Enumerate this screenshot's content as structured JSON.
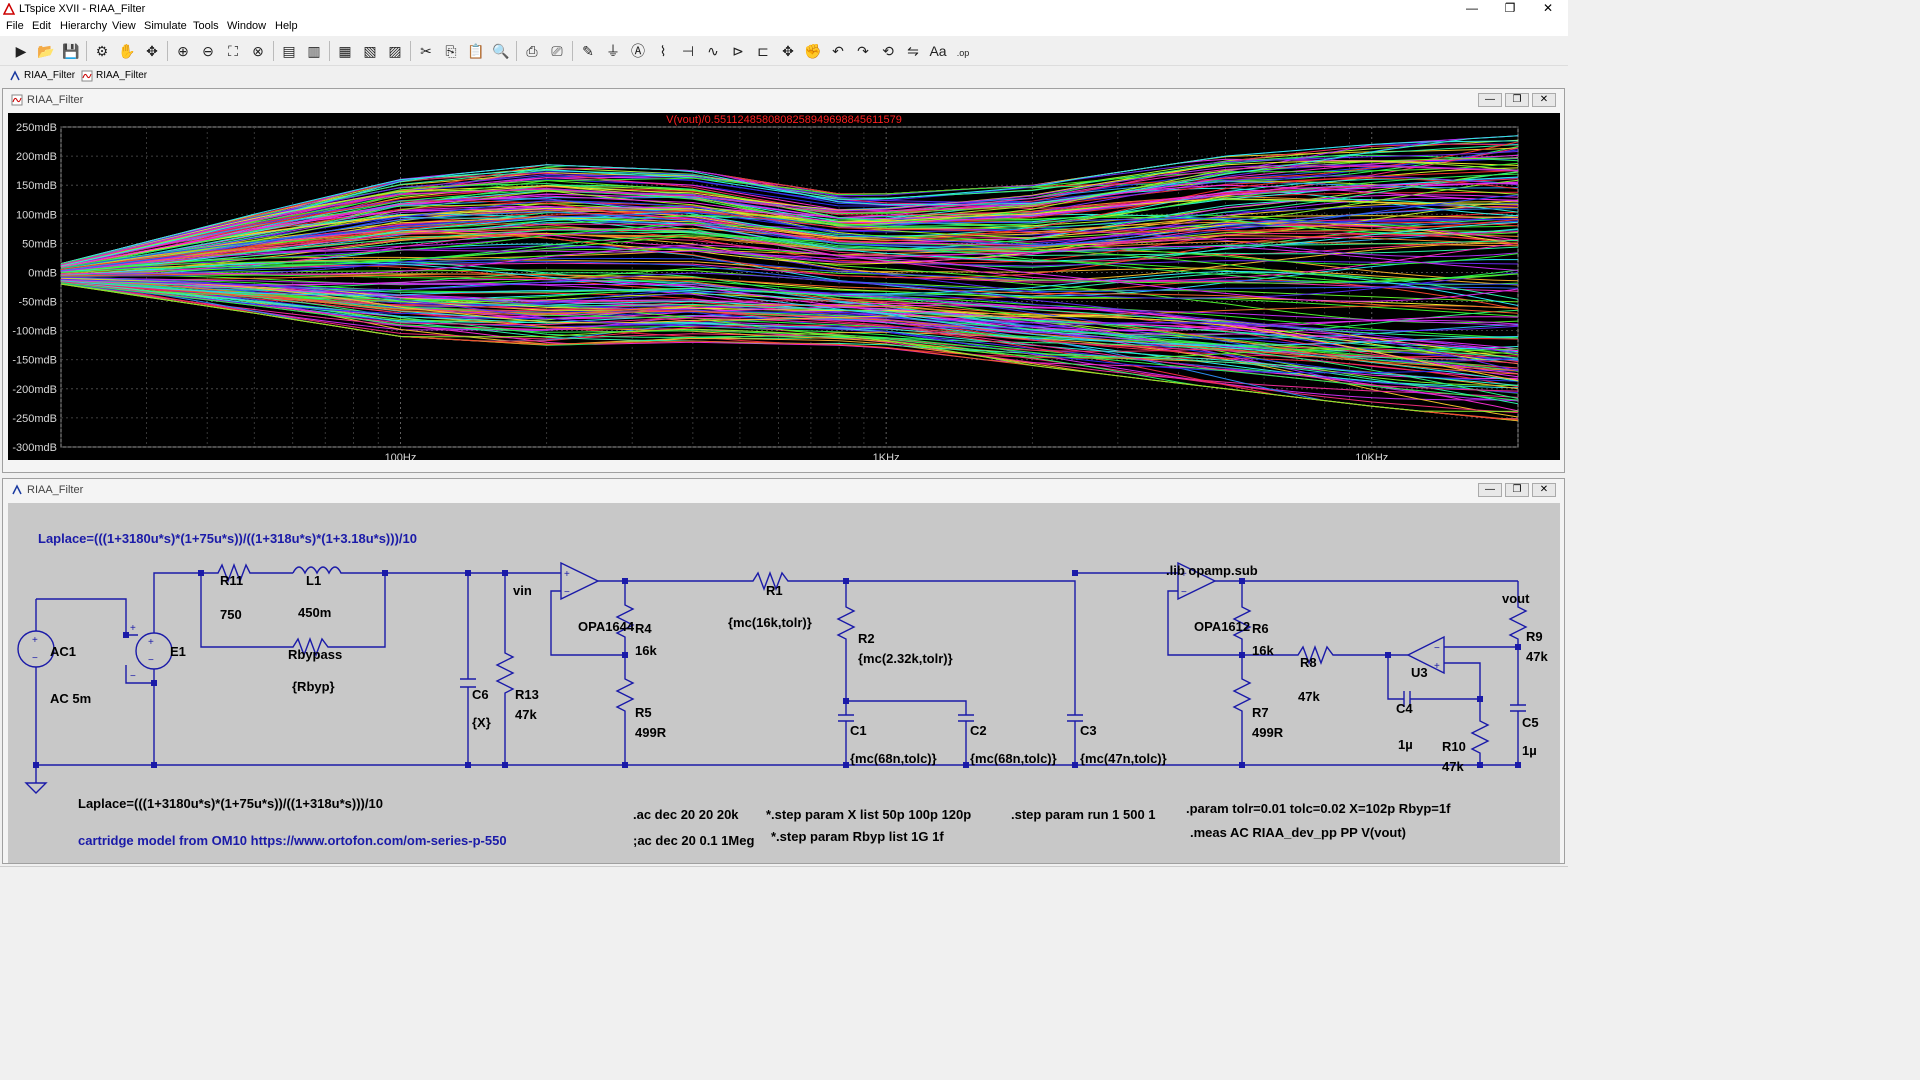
{
  "window": {
    "title": "LTspice XVII - RIAA_Filter",
    "minimize": "—",
    "maximize": "❐",
    "close": "✕"
  },
  "menu": [
    "File",
    "Edit",
    "Hierarchy",
    "View",
    "Simulate",
    "Tools",
    "Window",
    "Help"
  ],
  "toolbar_icons": [
    "run-icon",
    "open-icon",
    "save-icon",
    "control-panel-icon",
    "halt-icon",
    "pan-icon",
    "zoom-in-icon",
    "zoom-out-icon",
    "zoom-full-icon",
    "zoom-cancel-icon",
    "autorange-icon",
    "mark-unref-icon",
    "tile-horizontal-icon",
    "tile-vertical-icon",
    "cascade-icon",
    "cut-icon",
    "copy-icon",
    "paste-icon",
    "find-icon",
    "print-icon",
    "print-setup-icon",
    "draw-wire-icon",
    "ground-icon",
    "label-net-icon",
    "resistor-icon",
    "capacitor-icon",
    "inductor-icon",
    "diode-icon",
    "component-icon",
    "move-icon",
    "drag-icon",
    "undo-icon",
    "redo-icon",
    "rotate-icon",
    "mirror-icon",
    "text-icon",
    "spice-directive-icon"
  ],
  "tabs": [
    {
      "label": "RIAA_Filter",
      "icon": "schematic-icon"
    },
    {
      "label": "RIAA_Filter",
      "icon": "waveform-icon"
    }
  ],
  "waveform_window": {
    "title": "RIAA_Filter",
    "trace_label": "V(vout)/0.551124858080825894969884561157​9",
    "trace_color": "#ff2020"
  },
  "schematic_window": {
    "title": "RIAA_Filter",
    "labels": {
      "laplace_top": "Laplace=(((1+3180u*s)*(1+75u*s))/((1+318u*s)*(1+3.18u*s)))/10",
      "laplace_bottom": "Laplace=(((1+3180u*s)*(1+75u*s))/((1+318u*s)))/10",
      "cartridge": "cartridge model from OM10 https://www.ortofon.com/om-series-p-550",
      "ac1": "AC1",
      "ac1_val": "AC 5m",
      "e1": "E1",
      "r11": "R11",
      "r11_val": "750",
      "l1": "L1",
      "l1_val": "450m",
      "rbypass": "Rbypass",
      "rbypass_val": "{Rbyp}",
      "c6": "C6",
      "c6_val": "{X}",
      "r13": "R13",
      "r13_val": "47k",
      "vin": "vin",
      "opa1": "OPA1644",
      "r4": "R4",
      "r4_val": "16k",
      "r5": "R5",
      "r5_val": "499R",
      "r1": "R1",
      "r1_val": "{mc(16k,tolr)}",
      "r2": "R2",
      "r2_val": "{mc(2.32k,tolr)}",
      "c1": "C1",
      "c1_val": "{mc(68n,tolc)}",
      "c2": "C2",
      "c2_val": "{mc(68n,tolc)}",
      "c3": "C3",
      "c3_val": "{mc(47n,tolc)}",
      "lib": ".lib opamp.sub",
      "opa2": "OPA1612",
      "r6": "R6",
      "r6_val": "16k",
      "r7": "R7",
      "r7_val": "499R",
      "r8": "R8",
      "r8_val": "47k",
      "u3": "U3",
      "c4": "C4",
      "c4_val": "1µ",
      "r10": "R10",
      "r10_val": "47k",
      "r9": "R9",
      "r9_val": "47k",
      "c5": "C5",
      "c5_val": "1µ",
      "vout": "vout",
      "dir_ac1": ".ac dec 20 20 20k",
      "dir_ac2": ";ac dec 20 0.1 1Meg",
      "dir_step1": "*.step param X list 50p 100p 120p",
      "dir_step2": "*.step param Rbyp list 1G 1f",
      "dir_step3": ".step param run 1 500 1",
      "dir_param": ".param tolr=0.01 tolc=0.02 X=102p Rbyp=1f",
      "dir_meas": ".meas AC RIAA_dev_pp PP V(vout)"
    }
  },
  "chart_data": {
    "type": "line",
    "title": "V(vout)/0.551124858080825894969884561157​9",
    "x_scale": "log",
    "xlim": [
      20,
      20000
    ],
    "x_tick_labels": [
      {
        "value": 100,
        "label": "100Hz"
      },
      {
        "value": 1000,
        "label": "1KHz"
      },
      {
        "value": 10000,
        "label": "10KHz"
      }
    ],
    "ylim": [
      -300,
      250
    ],
    "y_unit": "mdB",
    "y_tick_labels": [
      "250mdB",
      "200mdB",
      "150mdB",
      "100mdB",
      "50mdB",
      "0mdB",
      "-50mdB",
      "-100mdB",
      "-150mdB",
      "-200mdB",
      "-250mdB",
      "-300mdB"
    ],
    "y_tick_values": [
      250,
      200,
      150,
      100,
      50,
      0,
      -50,
      -100,
      -150,
      -200,
      -250,
      -300
    ],
    "grid": true,
    "series_count": 500,
    "envelope": {
      "x": [
        20,
        50,
        100,
        200,
        400,
        800,
        1000,
        2000,
        5000,
        10000,
        20000
      ],
      "upper": [
        15,
        100,
        160,
        185,
        175,
        135,
        135,
        150,
        200,
        220,
        235
      ],
      "lower": [
        -20,
        -70,
        -110,
        -125,
        -120,
        -125,
        -130,
        -160,
        -200,
        -230,
        -255
      ]
    }
  }
}
